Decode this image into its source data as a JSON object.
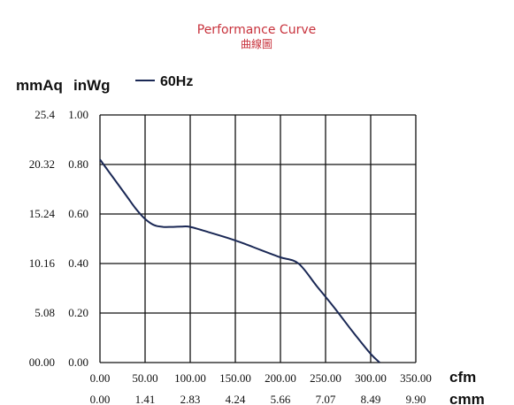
{
  "title": "Performance Curve",
  "subtitle": "曲線圖",
  "colors": {
    "curve": "#1a2855",
    "grid": "#111111",
    "title": "#c8323c"
  },
  "chart_data": {
    "type": "line",
    "title": "Performance Curve",
    "subtitle": "曲線圖",
    "ylabel_primary": "mmAq",
    "ylabel_secondary": "inWg",
    "xlabel_primary": "cfm",
    "xlabel_secondary": "cmm",
    "xlim": [
      0,
      350
    ],
    "ylim": [
      0,
      1.0
    ],
    "grid": true,
    "legend_position": "top",
    "x_ticks_cfm": [
      "0.00",
      "50.00",
      "100.00",
      "150.00",
      "200.00",
      "250.00",
      "300.00",
      "350.00"
    ],
    "x_ticks_cmm": [
      "0.00",
      "1.41",
      "2.83",
      "4.24",
      "5.66",
      "7.07",
      "8.49",
      "9.90"
    ],
    "y_ticks_inwg": [
      "0.00",
      "0.20",
      "0.40",
      "0.60",
      "0.80",
      "1.00"
    ],
    "y_ticks_mmaq": [
      "00.00",
      "5.08",
      "10.16",
      "15.24",
      "20.32",
      "25.4"
    ],
    "series": [
      {
        "name": "60Hz",
        "x": [
          0,
          10,
          20,
          30,
          40,
          50,
          60,
          70,
          80,
          90,
          100,
          120,
          140,
          160,
          180,
          200,
          220,
          240,
          260,
          280,
          300,
          310
        ],
        "y": [
          0.82,
          0.77,
          0.72,
          0.67,
          0.62,
          0.58,
          0.555,
          0.548,
          0.548,
          0.549,
          0.548,
          0.527,
          0.505,
          0.48,
          0.452,
          0.425,
          0.4,
          0.31,
          0.22,
          0.125,
          0.035,
          0.0
        ]
      }
    ]
  }
}
